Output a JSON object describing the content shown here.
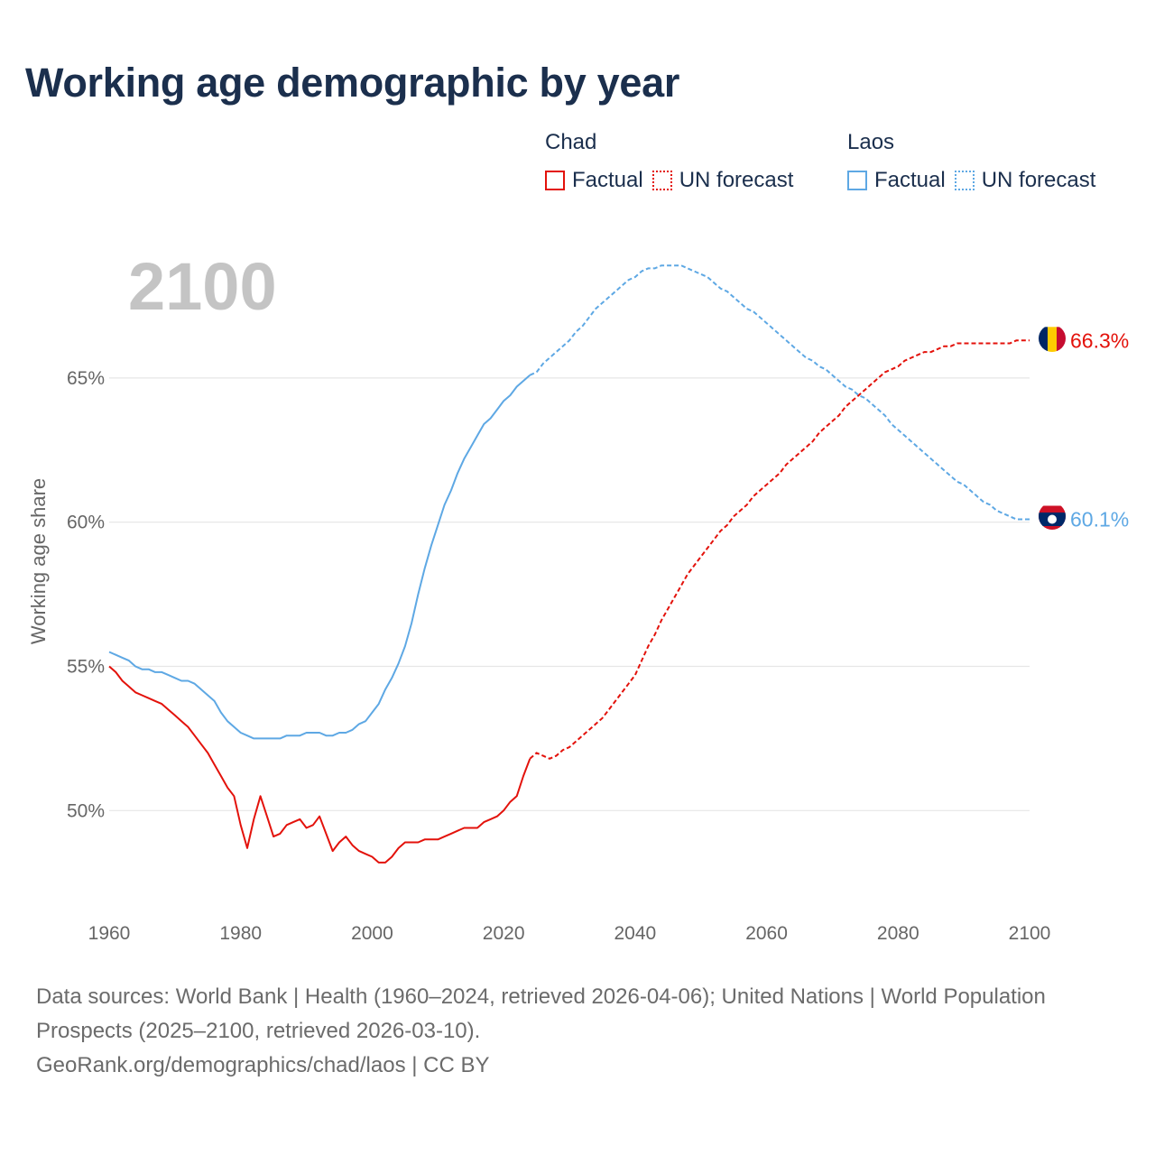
{
  "title": "Working age demographic by year",
  "legend": {
    "groups": [
      {
        "name": "Chad",
        "factual_label": "Factual",
        "forecast_label": "UN forecast",
        "color": "#e3120b"
      },
      {
        "name": "Laos",
        "factual_label": "Factual",
        "forecast_label": "UN forecast",
        "color": "#5ea8e4"
      }
    ]
  },
  "year_display": "2100",
  "footer": {
    "line1": "Data sources: World Bank | Health (1960–2024, retrieved 2026-04-06); United Nations | World Population Prospects (2025–2100, retrieved 2026-03-10).",
    "line2": "GeoRank.org/demographics/chad/laos | CC BY"
  },
  "chart_data": {
    "type": "line",
    "title": "Working age demographic by year",
    "xlabel": "",
    "ylabel": "Working age share",
    "xlim": [
      1960,
      2100
    ],
    "ylim": [
      46.6,
      68.5
    ],
    "x_ticks": [
      1960,
      1980,
      2000,
      2020,
      2040,
      2060,
      2080,
      2100
    ],
    "y_ticks": [
      50,
      55,
      60,
      65
    ],
    "y_tick_labels": [
      "50%",
      "55%",
      "60%",
      "65%"
    ],
    "grid": true,
    "series": [
      {
        "name": "Chad",
        "color": "#e3120b",
        "end_label": "66.3%",
        "flag": "chad",
        "factual": {
          "x": [
            1960,
            1961,
            1962,
            1963,
            1964,
            1965,
            1966,
            1967,
            1968,
            1969,
            1970,
            1971,
            1972,
            1973,
            1974,
            1975,
            1976,
            1977,
            1978,
            1979,
            1980,
            1981,
            1982,
            1983,
            1984,
            1985,
            1986,
            1987,
            1988,
            1989,
            1990,
            1991,
            1992,
            1993,
            1994,
            1995,
            1996,
            1997,
            1998,
            1999,
            2000,
            2001,
            2002,
            2003,
            2004,
            2005,
            2006,
            2007,
            2008,
            2009,
            2010,
            2011,
            2012,
            2013,
            2014,
            2015,
            2016,
            2017,
            2018,
            2019,
            2020,
            2021,
            2022,
            2023,
            2024
          ],
          "y": [
            55.0,
            54.8,
            54.5,
            54.3,
            54.1,
            54.0,
            53.9,
            53.8,
            53.7,
            53.5,
            53.3,
            53.1,
            52.9,
            52.6,
            52.3,
            52.0,
            51.6,
            51.2,
            50.8,
            50.5,
            49.5,
            48.7,
            49.7,
            50.5,
            49.8,
            49.1,
            49.2,
            49.5,
            49.6,
            49.7,
            49.4,
            49.5,
            49.8,
            49.2,
            48.6,
            48.9,
            49.1,
            48.8,
            48.6,
            48.5,
            48.4,
            48.2,
            48.2,
            48.4,
            48.7,
            48.9,
            48.9,
            48.9,
            49.0,
            49.0,
            49.0,
            49.1,
            49.2,
            49.3,
            49.4,
            49.4,
            49.4,
            49.6,
            49.7,
            49.8,
            50.0,
            50.3,
            50.5,
            51.2,
            51.8
          ]
        },
        "forecast": {
          "x": [
            2024,
            2025,
            2026,
            2027,
            2028,
            2029,
            2030,
            2031,
            2032,
            2033,
            2034,
            2035,
            2036,
            2037,
            2038,
            2039,
            2040,
            2041,
            2042,
            2043,
            2044,
            2045,
            2046,
            2047,
            2048,
            2049,
            2050,
            2051,
            2052,
            2053,
            2054,
            2055,
            2056,
            2057,
            2058,
            2059,
            2060,
            2061,
            2062,
            2063,
            2064,
            2065,
            2066,
            2067,
            2068,
            2069,
            2070,
            2071,
            2072,
            2073,
            2074,
            2075,
            2076,
            2077,
            2078,
            2079,
            2080,
            2081,
            2082,
            2083,
            2084,
            2085,
            2086,
            2087,
            2088,
            2089,
            2090,
            2091,
            2092,
            2093,
            2094,
            2095,
            2096,
            2097,
            2098,
            2099,
            2100
          ],
          "y": [
            51.8,
            52.0,
            51.9,
            51.8,
            51.9,
            52.1,
            52.2,
            52.4,
            52.6,
            52.8,
            53.0,
            53.2,
            53.5,
            53.8,
            54.1,
            54.4,
            54.7,
            55.2,
            55.7,
            56.1,
            56.6,
            57.0,
            57.4,
            57.8,
            58.2,
            58.5,
            58.8,
            59.1,
            59.4,
            59.7,
            59.9,
            60.2,
            60.4,
            60.6,
            60.9,
            61.1,
            61.3,
            61.5,
            61.7,
            62.0,
            62.2,
            62.4,
            62.6,
            62.8,
            63.1,
            63.3,
            63.5,
            63.7,
            64.0,
            64.2,
            64.4,
            64.6,
            64.8,
            65.0,
            65.2,
            65.3,
            65.4,
            65.6,
            65.7,
            65.8,
            65.9,
            65.9,
            66.0,
            66.1,
            66.1,
            66.2,
            66.2,
            66.2,
            66.2,
            66.2,
            66.2,
            66.2,
            66.2,
            66.2,
            66.3,
            66.3,
            66.3
          ]
        }
      },
      {
        "name": "Laos",
        "color": "#5ea8e4",
        "end_label": "60.1%",
        "flag": "laos",
        "factual": {
          "x": [
            1960,
            1961,
            1962,
            1963,
            1964,
            1965,
            1966,
            1967,
            1968,
            1969,
            1970,
            1971,
            1972,
            1973,
            1974,
            1975,
            1976,
            1977,
            1978,
            1979,
            1980,
            1981,
            1982,
            1983,
            1984,
            1985,
            1986,
            1987,
            1988,
            1989,
            1990,
            1991,
            1992,
            1993,
            1994,
            1995,
            1996,
            1997,
            1998,
            1999,
            2000,
            2001,
            2002,
            2003,
            2004,
            2005,
            2006,
            2007,
            2008,
            2009,
            2010,
            2011,
            2012,
            2013,
            2014,
            2015,
            2016,
            2017,
            2018,
            2019,
            2020,
            2021,
            2022,
            2023,
            2024
          ],
          "y": [
            55.5,
            55.4,
            55.3,
            55.2,
            55.0,
            54.9,
            54.9,
            54.8,
            54.8,
            54.7,
            54.6,
            54.5,
            54.5,
            54.4,
            54.2,
            54.0,
            53.8,
            53.4,
            53.1,
            52.9,
            52.7,
            52.6,
            52.5,
            52.5,
            52.5,
            52.5,
            52.5,
            52.6,
            52.6,
            52.6,
            52.7,
            52.7,
            52.7,
            52.6,
            52.6,
            52.7,
            52.7,
            52.8,
            53.0,
            53.1,
            53.4,
            53.7,
            54.2,
            54.6,
            55.1,
            55.7,
            56.5,
            57.5,
            58.4,
            59.2,
            59.9,
            60.6,
            61.1,
            61.7,
            62.2,
            62.6,
            63.0,
            63.4,
            63.6,
            63.9,
            64.2,
            64.4,
            64.7,
            64.9,
            65.1
          ]
        },
        "forecast": {
          "x": [
            2024,
            2025,
            2026,
            2027,
            2028,
            2029,
            2030,
            2031,
            2032,
            2033,
            2034,
            2035,
            2036,
            2037,
            2038,
            2039,
            2040,
            2041,
            2042,
            2043,
            2044,
            2045,
            2046,
            2047,
            2048,
            2049,
            2050,
            2051,
            2052,
            2053,
            2054,
            2055,
            2056,
            2057,
            2058,
            2059,
            2060,
            2061,
            2062,
            2063,
            2064,
            2065,
            2066,
            2067,
            2068,
            2069,
            2070,
            2071,
            2072,
            2073,
            2074,
            2075,
            2076,
            2077,
            2078,
            2079,
            2080,
            2081,
            2082,
            2083,
            2084,
            2085,
            2086,
            2087,
            2088,
            2089,
            2090,
            2091,
            2092,
            2093,
            2094,
            2095,
            2096,
            2097,
            2098,
            2099,
            2100
          ],
          "y": [
            65.1,
            65.2,
            65.5,
            65.7,
            65.9,
            66.1,
            66.3,
            66.6,
            66.8,
            67.1,
            67.4,
            67.6,
            67.8,
            68.0,
            68.2,
            68.4,
            68.5,
            68.7,
            68.8,
            68.8,
            68.9,
            68.9,
            68.9,
            68.9,
            68.8,
            68.7,
            68.6,
            68.5,
            68.3,
            68.1,
            68.0,
            67.8,
            67.6,
            67.4,
            67.3,
            67.1,
            66.9,
            66.7,
            66.5,
            66.3,
            66.1,
            65.9,
            65.7,
            65.6,
            65.4,
            65.3,
            65.1,
            64.9,
            64.7,
            64.6,
            64.4,
            64.3,
            64.1,
            63.9,
            63.7,
            63.4,
            63.2,
            63.0,
            62.8,
            62.6,
            62.4,
            62.2,
            62.0,
            61.8,
            61.6,
            61.4,
            61.3,
            61.1,
            60.9,
            60.7,
            60.6,
            60.4,
            60.3,
            60.2,
            60.1,
            60.1,
            60.1
          ]
        }
      }
    ]
  }
}
